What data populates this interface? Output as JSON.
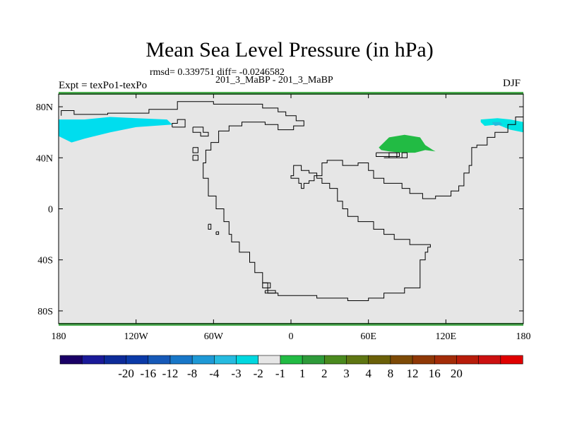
{
  "title": "Mean Sea Level Pressure (in hPa)",
  "stats": "rmsd= 0.339751 diff= -0.0246582",
  "subtitle": "201_3_MaBP - 201_3_MaBP",
  "left_label": "Expt = texPo1-texPo",
  "right_label": "DJF",
  "map_data": {
    "projection": "cylindrical-equidistant",
    "lon_range": [
      -180,
      180
    ],
    "lat_range": [
      -90,
      90
    ],
    "x_ticks": [
      {
        "value": -180,
        "label": "180"
      },
      {
        "value": -120,
        "label": "120W"
      },
      {
        "value": -60,
        "label": "60W"
      },
      {
        "value": 0,
        "label": "0"
      },
      {
        "value": 60,
        "label": "60E"
      },
      {
        "value": 120,
        "label": "120E"
      },
      {
        "value": 180,
        "label": "180"
      }
    ],
    "y_ticks": [
      {
        "value": 80,
        "label": "80N"
      },
      {
        "value": 40,
        "label": "40N"
      },
      {
        "value": 0,
        "label": "0"
      },
      {
        "value": -40,
        "label": "40S"
      },
      {
        "value": -80,
        "label": "80S"
      }
    ],
    "background_color": "#e6e6e6",
    "border_band_color": "#4caf50",
    "continent_outline": [
      [
        -178,
        73
      ],
      [
        -178,
        77
      ],
      [
        -168,
        77
      ],
      [
        -168,
        74
      ],
      [
        -142,
        74
      ],
      [
        -142,
        75
      ],
      [
        -110,
        75
      ],
      [
        -110,
        78
      ],
      [
        -88,
        78
      ],
      [
        -88,
        84
      ],
      [
        -60,
        84
      ],
      [
        -60,
        82
      ],
      [
        -22,
        82
      ],
      [
        -22,
        79
      ],
      [
        -10,
        79
      ],
      [
        -10,
        76
      ],
      [
        -4,
        76
      ],
      [
        -4,
        73
      ],
      [
        4,
        73
      ],
      [
        4,
        69
      ],
      [
        10,
        69
      ],
      [
        10,
        65
      ],
      [
        2,
        65
      ],
      [
        2,
        62
      ],
      [
        -10,
        62
      ],
      [
        -10,
        66
      ],
      [
        -20,
        66
      ],
      [
        -20,
        68
      ],
      [
        -38,
        68
      ],
      [
        -38,
        65
      ],
      [
        -48,
        65
      ],
      [
        -48,
        61
      ],
      [
        -56,
        61
      ],
      [
        -56,
        52
      ],
      [
        -62,
        52
      ],
      [
        -62,
        46
      ],
      [
        -66,
        46
      ],
      [
        -66,
        36
      ],
      [
        -68,
        36
      ],
      [
        -68,
        24
      ],
      [
        -64,
        24
      ],
      [
        -64,
        10
      ],
      [
        -58,
        10
      ],
      [
        -58,
        0
      ],
      [
        -52,
        0
      ],
      [
        -52,
        -10
      ],
      [
        -48,
        -10
      ],
      [
        -48,
        -20
      ],
      [
        -46,
        -20
      ],
      [
        -46,
        -26
      ],
      [
        -40,
        -26
      ],
      [
        -40,
        -34
      ],
      [
        -32,
        -34
      ],
      [
        -32,
        -42
      ],
      [
        -28,
        -42
      ],
      [
        -28,
        -50
      ],
      [
        -22,
        -50
      ],
      [
        -22,
        -58
      ],
      [
        -18,
        -58
      ],
      [
        -18,
        -66
      ],
      [
        -10,
        -66
      ],
      [
        -10,
        -68
      ],
      [
        0,
        -68
      ],
      [
        0,
        -68
      ],
      [
        20,
        -68
      ],
      [
        20,
        -70
      ],
      [
        44,
        -70
      ],
      [
        44,
        -72
      ],
      [
        60,
        -72
      ],
      [
        60,
        -70
      ],
      [
        72,
        -70
      ],
      [
        72,
        -66
      ],
      [
        88,
        -66
      ],
      [
        88,
        -62
      ],
      [
        100,
        -62
      ],
      [
        100,
        -40
      ],
      [
        104,
        -40
      ],
      [
        104,
        -34
      ],
      [
        106,
        -34
      ],
      [
        106,
        -30
      ],
      [
        108,
        -30
      ],
      [
        108,
        -28
      ],
      [
        92,
        -28
      ],
      [
        92,
        -24
      ],
      [
        80,
        -24
      ],
      [
        80,
        -20
      ],
      [
        72,
        -20
      ],
      [
        72,
        -16
      ],
      [
        64,
        -16
      ],
      [
        64,
        -10
      ],
      [
        52,
        -10
      ],
      [
        52,
        -6
      ],
      [
        44,
        -6
      ],
      [
        44,
        0
      ],
      [
        40,
        0
      ],
      [
        40,
        6
      ],
      [
        36,
        6
      ],
      [
        36,
        16
      ],
      [
        30,
        16
      ],
      [
        30,
        20
      ],
      [
        24,
        20
      ],
      [
        24,
        24
      ],
      [
        20,
        24
      ],
      [
        20,
        28
      ],
      [
        14,
        28
      ],
      [
        14,
        30
      ],
      [
        8,
        30
      ],
      [
        8,
        34
      ],
      [
        2,
        34
      ],
      [
        2,
        26
      ],
      [
        0,
        26
      ],
      [
        0,
        24
      ],
      [
        6,
        24
      ],
      [
        6,
        20
      ],
      [
        8,
        20
      ],
      [
        8,
        16
      ],
      [
        10,
        16
      ],
      [
        10,
        20
      ],
      [
        14,
        20
      ],
      [
        14,
        22
      ],
      [
        18,
        22
      ],
      [
        18,
        26
      ],
      [
        24,
        26
      ],
      [
        24,
        36
      ],
      [
        28,
        36
      ],
      [
        28,
        38
      ],
      [
        40,
        38
      ],
      [
        40,
        34
      ],
      [
        52,
        34
      ],
      [
        52,
        36
      ],
      [
        60,
        36
      ],
      [
        60,
        30
      ],
      [
        64,
        30
      ],
      [
        64,
        24
      ],
      [
        72,
        24
      ],
      [
        72,
        20
      ],
      [
        86,
        20
      ],
      [
        86,
        16
      ],
      [
        92,
        16
      ],
      [
        92,
        12
      ],
      [
        102,
        12
      ],
      [
        102,
        8
      ],
      [
        112,
        8
      ],
      [
        112,
        10
      ],
      [
        124,
        10
      ],
      [
        124,
        14
      ],
      [
        130,
        14
      ],
      [
        130,
        18
      ],
      [
        134,
        18
      ],
      [
        134,
        28
      ],
      [
        138,
        28
      ],
      [
        138,
        34
      ],
      [
        140,
        34
      ],
      [
        140,
        48
      ],
      [
        144,
        48
      ],
      [
        144,
        50
      ],
      [
        152,
        50
      ],
      [
        152,
        56
      ],
      [
        158,
        56
      ],
      [
        158,
        60
      ],
      [
        168,
        60
      ],
      [
        168,
        66
      ],
      [
        174,
        66
      ],
      [
        174,
        72
      ],
      [
        180,
        72
      ]
    ],
    "islands": [
      [
        [
          -92,
          64
        ],
        [
          -82,
          64
        ],
        [
          -82,
          70
        ],
        [
          -88,
          70
        ],
        [
          -88,
          67
        ],
        [
          -92,
          67
        ],
        [
          -92,
          64
        ]
      ],
      [
        [
          -76,
          64
        ],
        [
          -76,
          60
        ],
        [
          -70,
          60
        ],
        [
          -70,
          57
        ],
        [
          -64,
          57
        ],
        [
          -64,
          60
        ],
        [
          -68,
          60
        ],
        [
          -68,
          64
        ],
        [
          -76,
          64
        ]
      ],
      [
        [
          -76,
          48
        ],
        [
          -72,
          48
        ],
        [
          -72,
          44
        ],
        [
          -76,
          44
        ],
        [
          -76,
          48
        ]
      ],
      [
        [
          -76,
          42
        ],
        [
          -72,
          42
        ],
        [
          -72,
          38
        ],
        [
          -76,
          38
        ],
        [
          -76,
          42
        ]
      ],
      [
        [
          -64,
          -12
        ],
        [
          -62,
          -12
        ],
        [
          -62,
          -16
        ],
        [
          -64,
          -16
        ],
        [
          -64,
          -12
        ]
      ],
      [
        [
          -58,
          -18
        ],
        [
          -56,
          -18
        ],
        [
          -56,
          -20
        ],
        [
          -58,
          -20
        ],
        [
          -58,
          -18
        ]
      ],
      [
        [
          -22,
          -58
        ],
        [
          -16,
          -58
        ],
        [
          -16,
          -62
        ],
        [
          -22,
          -62
        ],
        [
          -22,
          -58
        ]
      ],
      [
        [
          -20,
          -64
        ],
        [
          -12,
          -64
        ],
        [
          -12,
          -66
        ],
        [
          -20,
          -66
        ],
        [
          -20,
          -64
        ]
      ],
      [
        [
          72,
          40
        ],
        [
          90,
          40
        ],
        [
          90,
          44
        ],
        [
          86,
          44
        ],
        [
          86,
          40
        ],
        [
          82,
          40
        ],
        [
          82,
          44
        ],
        [
          76,
          44
        ],
        [
          76,
          40
        ],
        [
          72,
          40
        ]
      ],
      [
        [
          66,
          44
        ],
        [
          84,
          44
        ],
        [
          84,
          41
        ],
        [
          66,
          41
        ],
        [
          66,
          44
        ]
      ]
    ],
    "anomalies": [
      {
        "value_band": "-3 to -2",
        "color": "#00ddee",
        "polygon": [
          [
            -180,
            70
          ],
          [
            -160,
            70
          ],
          [
            -140,
            72
          ],
          [
            -120,
            71
          ],
          [
            -96,
            70
          ],
          [
            -92,
            66
          ],
          [
            -120,
            64
          ],
          [
            -140,
            60
          ],
          [
            -160,
            55
          ],
          [
            -170,
            52
          ],
          [
            -180,
            57
          ]
        ]
      },
      {
        "value_band": "-2 to -1",
        "color": "#00e5e5",
        "polygon": [
          [
            147,
            70
          ],
          [
            160,
            71
          ],
          [
            170,
            70
          ],
          [
            180,
            68
          ],
          [
            180,
            60
          ],
          [
            170,
            62
          ],
          [
            160,
            66
          ],
          [
            150,
            65
          ],
          [
            147,
            68
          ]
        ]
      },
      {
        "value_band": "-3 to -2",
        "color": "#22bcdd",
        "polygon": [
          [
            156,
            68
          ],
          [
            162,
            68
          ],
          [
            164,
            66
          ],
          [
            158,
            65
          ],
          [
            156,
            67
          ]
        ]
      },
      {
        "value_band": "1 to 2",
        "color": "#22bb44",
        "polygon": [
          [
            68,
            48
          ],
          [
            76,
            56
          ],
          [
            88,
            58
          ],
          [
            100,
            56
          ],
          [
            104,
            50
          ],
          [
            110,
            46
          ],
          [
            112,
            45
          ],
          [
            104,
            46
          ],
          [
            96,
            44
          ],
          [
            86,
            44
          ],
          [
            76,
            45
          ],
          [
            70,
            46
          ]
        ]
      }
    ]
  },
  "colorbar": {
    "colors": [
      "#1a0066",
      "#1a1a99",
      "#0d2b99",
      "#0b3aa8",
      "#1659b8",
      "#1877c8",
      "#1e99d6",
      "#26bbe0",
      "#00d8e0",
      "#e6e6e6",
      "#22bb44",
      "#2e9b3a",
      "#4a8a1e",
      "#5e7612",
      "#6b6008",
      "#7d4a06",
      "#8f3806",
      "#a32c08",
      "#b81c0a",
      "#cc1010",
      "#e00000"
    ],
    "labels": [
      "-20",
      "-16",
      "-12",
      "-8",
      "-4",
      "-3",
      "-2",
      "-1",
      "1",
      "2",
      "3",
      "4",
      "8",
      "12",
      "16",
      "20"
    ]
  }
}
